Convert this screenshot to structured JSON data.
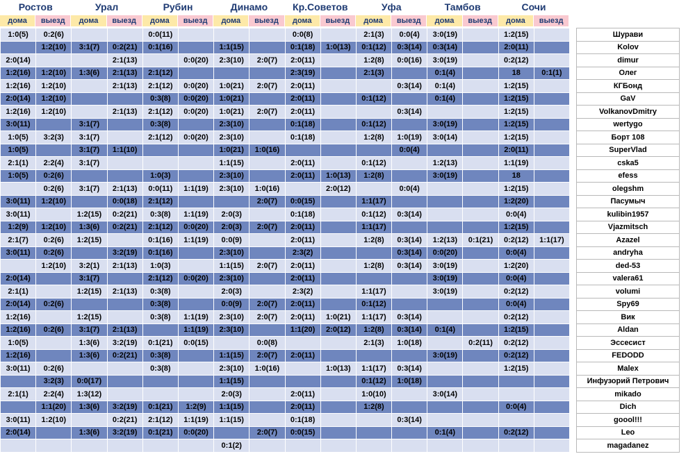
{
  "teams": [
    "Ростов",
    "Урал",
    "Рубин",
    "Динамо",
    "Кр.Советов",
    "Уфа",
    "Тамбов",
    "Сочи"
  ],
  "sub_labels": {
    "home": "дома",
    "away": "выезд"
  },
  "rows": [
    {
      "name": "Шурави",
      "cells": [
        "1:0(5)",
        "0:2(6)",
        "",
        "",
        "0:0(11)",
        "",
        "",
        "",
        "0:0(8)",
        "",
        "2:1(3)",
        "0:0(4)",
        "3:0(19)",
        "",
        "1:2(15)",
        ""
      ]
    },
    {
      "name": "Kolov",
      "cells": [
        "",
        "1:2(10)",
        "3:1(7)",
        "0:2(21)",
        "0:1(16)",
        "",
        "1:1(15)",
        "",
        "0:1(18)",
        "1:0(13)",
        "0:1(12)",
        "0:3(14)",
        "0:3(14)",
        "",
        "2:0(11)",
        ""
      ]
    },
    {
      "name": "dimur",
      "cells": [
        "2:0(14)",
        "",
        "",
        "2:1(13)",
        "",
        "0:0(20)",
        "2:3(10)",
        "2:0(7)",
        "2:0(11)",
        "",
        "1:2(8)",
        "0:0(16)",
        "3:0(19)",
        "",
        "0:2(12)",
        ""
      ]
    },
    {
      "name": "Олег",
      "cells": [
        "1:2(16)",
        "1:2(10)",
        "1:3(6)",
        "2:1(13)",
        "2:1(12)",
        "",
        "",
        "",
        "2:3(19)",
        "",
        "2:1(3)",
        "",
        "0:1(4)",
        "",
        "18",
        "0:1(1)"
      ]
    },
    {
      "name": "КГБонд",
      "cells": [
        "1:2(16)",
        "1:2(10)",
        "",
        "2:1(13)",
        "2:1(12)",
        "0:0(20)",
        "1:0(21)",
        "2:0(7)",
        "2:0(11)",
        "",
        "",
        "0:3(14)",
        "0:1(4)",
        "",
        "1:2(15)",
        ""
      ]
    },
    {
      "name": "GaV",
      "cells": [
        "2:0(14)",
        "1:2(10)",
        "",
        "",
        "0:3(8)",
        "0:0(20)",
        "1:0(21)",
        "",
        "2:0(11)",
        "",
        "0:1(12)",
        "",
        "0:1(4)",
        "",
        "1:2(15)",
        ""
      ]
    },
    {
      "name": "VolkanovDmitry",
      "cells": [
        "1:2(16)",
        "1:2(10)",
        "",
        "2:1(13)",
        "2:1(12)",
        "0:0(20)",
        "1:0(21)",
        "2:0(7)",
        "2:0(11)",
        "",
        "",
        "0:3(14)",
        "",
        "",
        "1:2(15)",
        ""
      ]
    },
    {
      "name": "wertygo",
      "cells": [
        "3:0(11)",
        "",
        "3:1(7)",
        "",
        "0:3(8)",
        "",
        "2:3(10)",
        "",
        "0:1(18)",
        "",
        "0:1(12)",
        "",
        "3:0(19)",
        "",
        "1:2(15)",
        ""
      ]
    },
    {
      "name": "Борт 108",
      "cells": [
        "1:0(5)",
        "3:2(3)",
        "3:1(7)",
        "",
        "2:1(12)",
        "0:0(20)",
        "2:3(10)",
        "",
        "0:1(18)",
        "",
        "1:2(8)",
        "1:0(19)",
        "3:0(14)",
        "",
        "1:2(15)",
        ""
      ]
    },
    {
      "name": "SuperVlad",
      "cells": [
        "1:0(5)",
        "",
        "3:1(7)",
        "1:1(10)",
        "",
        "",
        "1:0(21)",
        "1:0(16)",
        "",
        "",
        "",
        "0:0(4)",
        "",
        "",
        "2:0(11)",
        ""
      ]
    },
    {
      "name": "cska5",
      "cells": [
        "2:1(1)",
        "2:2(4)",
        "3:1(7)",
        "",
        "",
        "",
        "1:1(15)",
        "",
        "2:0(11)",
        "",
        "0:1(12)",
        "",
        "1:2(13)",
        "",
        "1:1(19)",
        ""
      ]
    },
    {
      "name": "efess",
      "cells": [
        "1:0(5)",
        "0:2(6)",
        "",
        "",
        "1:0(3)",
        "",
        "2:3(10)",
        "",
        "2:0(11)",
        "1:0(13)",
        "1:2(8)",
        "",
        "3:0(19)",
        "",
        "18",
        ""
      ]
    },
    {
      "name": "olegshm",
      "cells": [
        "",
        "0:2(6)",
        "3:1(7)",
        "2:1(13)",
        "0:0(11)",
        "1:1(19)",
        "2:3(10)",
        "1:0(16)",
        "",
        "2:0(12)",
        "",
        "0:0(4)",
        "",
        "",
        "1:2(15)",
        ""
      ]
    },
    {
      "name": "Пасумыч",
      "cells": [
        "3:0(11)",
        "1:2(10)",
        "",
        "0:0(18)",
        "2:1(12)",
        "",
        "",
        "2:0(7)",
        "0:0(15)",
        "",
        "1:1(17)",
        "",
        "",
        "",
        "1:2(20)",
        ""
      ]
    },
    {
      "name": "kulibin1957",
      "cells": [
        "3:0(11)",
        "",
        "1:2(15)",
        "0:2(21)",
        "0:3(8)",
        "1:1(19)",
        "2:0(3)",
        "",
        "0:1(18)",
        "",
        "0:1(12)",
        "0:3(14)",
        "",
        "",
        "0:0(4)",
        ""
      ]
    },
    {
      "name": "Vjazmitsch",
      "cells": [
        "1:2(9)",
        "1:2(10)",
        "1:3(6)",
        "0:2(21)",
        "2:1(12)",
        "0:0(20)",
        "2:0(3)",
        "2:0(7)",
        "2:0(11)",
        "",
        "1:1(17)",
        "",
        "",
        "",
        "1:2(15)",
        ""
      ]
    },
    {
      "name": "Azazel",
      "cells": [
        "2:1(7)",
        "0:2(6)",
        "1:2(15)",
        "",
        "0:1(16)",
        "1:1(19)",
        "0:0(9)",
        "",
        "2:0(11)",
        "",
        "1:2(8)",
        "0:3(14)",
        "1:2(13)",
        "0:1(21)",
        "0:2(12)",
        "1:1(17)"
      ]
    },
    {
      "name": "andryha",
      "cells": [
        "3:0(11)",
        "0:2(6)",
        "",
        "3:2(19)",
        "0:1(16)",
        "",
        "2:3(10)",
        "",
        "2:3(2)",
        "",
        "",
        "0:3(14)",
        "0:0(20)",
        "",
        "0:0(4)",
        ""
      ]
    },
    {
      "name": "ded-53",
      "cells": [
        "",
        "1:2(10)",
        "3:2(1)",
        "2:1(13)",
        "1:0(3)",
        "",
        "1:1(15)",
        "2:0(7)",
        "2:0(11)",
        "",
        "1:2(8)",
        "0:3(14)",
        "3:0(19)",
        "",
        "1:2(20)",
        ""
      ]
    },
    {
      "name": "valera61",
      "cells": [
        "2:0(14)",
        "",
        "3:1(7)",
        "",
        "2:1(12)",
        "0:0(20)",
        "2:3(10)",
        "",
        "2:0(11)",
        "",
        "",
        "",
        "3:0(19)",
        "",
        "0:0(4)",
        ""
      ]
    },
    {
      "name": "volumi",
      "cells": [
        "2:1(1)",
        "",
        "1:2(15)",
        "2:1(13)",
        "0:3(8)",
        "",
        "2:0(3)",
        "",
        "2:3(2)",
        "",
        "1:1(17)",
        "",
        "3:0(19)",
        "",
        "0:2(12)",
        ""
      ]
    },
    {
      "name": "Spy69",
      "cells": [
        "2:0(14)",
        "0:2(6)",
        "",
        "",
        "0:3(8)",
        "",
        "0:0(9)",
        "2:0(7)",
        "2:0(11)",
        "",
        "0:1(12)",
        "",
        "",
        "",
        "0:0(4)",
        ""
      ]
    },
    {
      "name": "Вик",
      "cells": [
        "1:2(16)",
        "",
        "1:2(15)",
        "",
        "0:3(8)",
        "1:1(19)",
        "2:3(10)",
        "2:0(7)",
        "2:0(11)",
        "1:0(21)",
        "1:1(17)",
        "0:3(14)",
        "",
        "",
        "0:2(12)",
        ""
      ]
    },
    {
      "name": "Aldan",
      "cells": [
        "1:2(16)",
        "0:2(6)",
        "3:1(7)",
        "2:1(13)",
        "",
        "1:1(19)",
        "2:3(10)",
        "",
        "1:1(20)",
        "2:0(12)",
        "1:2(8)",
        "0:3(14)",
        "0:1(4)",
        "",
        "1:2(15)",
        ""
      ]
    },
    {
      "name": "Эссесист",
      "cells": [
        "1:0(5)",
        "",
        "1:3(6)",
        "3:2(19)",
        "0:1(21)",
        "0:0(15)",
        "",
        "0:0(8)",
        "",
        "",
        "2:1(3)",
        "1:0(18)",
        "",
        "0:2(11)",
        "0:2(12)",
        ""
      ]
    },
    {
      "name": "FEDODD",
      "cells": [
        "1:2(16)",
        "",
        "1:3(6)",
        "0:2(21)",
        "0:3(8)",
        "",
        "1:1(15)",
        "2:0(7)",
        "2:0(11)",
        "",
        "",
        "",
        "3:0(19)",
        "",
        "0:2(12)",
        ""
      ]
    },
    {
      "name": "Malex",
      "cells": [
        "3:0(11)",
        "0:2(6)",
        "",
        "",
        "0:3(8)",
        "",
        "2:3(10)",
        "1:0(16)",
        "",
        "1:0(13)",
        "1:1(17)",
        "0:3(14)",
        "",
        "",
        "1:2(15)",
        ""
      ]
    },
    {
      "name": "Инфузорий Петрович",
      "cells": [
        "",
        "3:2(3)",
        "0:0(17)",
        "",
        "",
        "",
        "1:1(15)",
        "",
        "",
        "",
        "0:1(12)",
        "1:0(18)",
        "",
        "",
        "",
        ""
      ]
    },
    {
      "name": "mikado",
      "cells": [
        "2:1(1)",
        "2:2(4)",
        "1:3(12)",
        "",
        "",
        "",
        "2:0(3)",
        "",
        "2:0(11)",
        "",
        "1:0(10)",
        "",
        "3:0(14)",
        "",
        "",
        ""
      ]
    },
    {
      "name": "Dich",
      "cells": [
        "",
        "1:1(20)",
        "1:3(6)",
        "3:2(19)",
        "0:1(21)",
        "1:2(9)",
        "1:1(15)",
        "",
        "2:0(11)",
        "",
        "1:2(8)",
        "",
        "",
        "",
        "0:0(4)",
        ""
      ]
    },
    {
      "name": "goool!!!",
      "cells": [
        "3:0(11)",
        "1:2(10)",
        "",
        "0:2(21)",
        "2:1(12)",
        "1:1(19)",
        "1:1(15)",
        "",
        "0:1(18)",
        "",
        "",
        "0:3(14)",
        "",
        "",
        "",
        ""
      ]
    },
    {
      "name": "Leo",
      "cells": [
        "2:0(14)",
        "",
        "1:3(6)",
        "3:2(19)",
        "0:1(21)",
        "0:0(20)",
        "",
        "2:0(7)",
        "0:0(15)",
        "",
        "",
        "",
        "0:1(4)",
        "",
        "0:2(12)",
        ""
      ]
    },
    {
      "name": "magadanez",
      "cells": [
        "",
        "",
        "",
        "",
        "",
        "",
        "0:1(2)",
        "",
        "",
        "",
        "",
        "",
        "",
        "",
        "",
        ""
      ]
    }
  ]
}
